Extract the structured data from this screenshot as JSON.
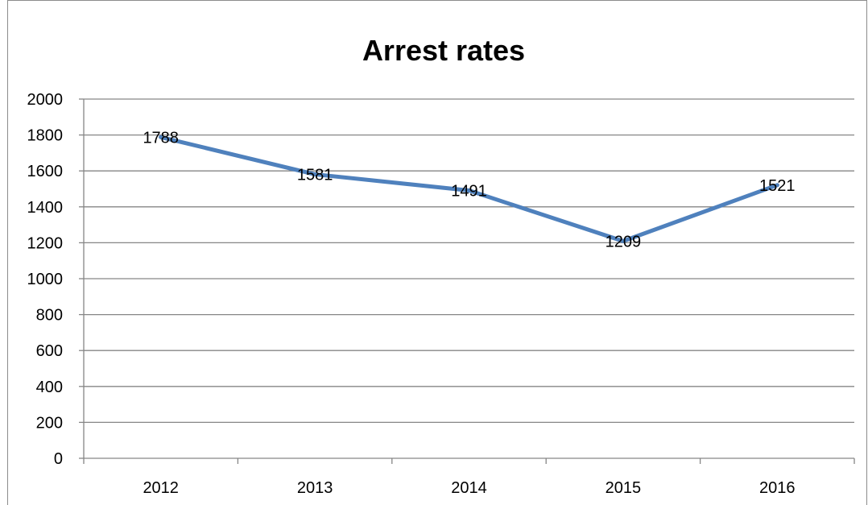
{
  "chart_data": {
    "type": "line",
    "title": "Arrest rates",
    "xlabel": "",
    "ylabel": "",
    "categories": [
      "2012",
      "2013",
      "2014",
      "2015",
      "2016"
    ],
    "series": [
      {
        "values": [
          1788,
          1581,
          1491,
          1209,
          1521
        ],
        "color": "#4f81bd"
      }
    ],
    "data_labels": [
      "1788",
      "1581",
      "1491",
      "1209",
      "1521"
    ],
    "ylim": [
      0,
      2000
    ],
    "yticks": [
      0,
      200,
      400,
      600,
      800,
      1000,
      1200,
      1400,
      1600,
      1800,
      2000
    ],
    "ytick_labels": [
      "0",
      "200",
      "400",
      "600",
      "800",
      "1000",
      "1200",
      "1400",
      "1600",
      "1800",
      "2000"
    ],
    "grid": true,
    "legend": "none",
    "gridline_color": "#868686",
    "axis_color": "#868686"
  }
}
